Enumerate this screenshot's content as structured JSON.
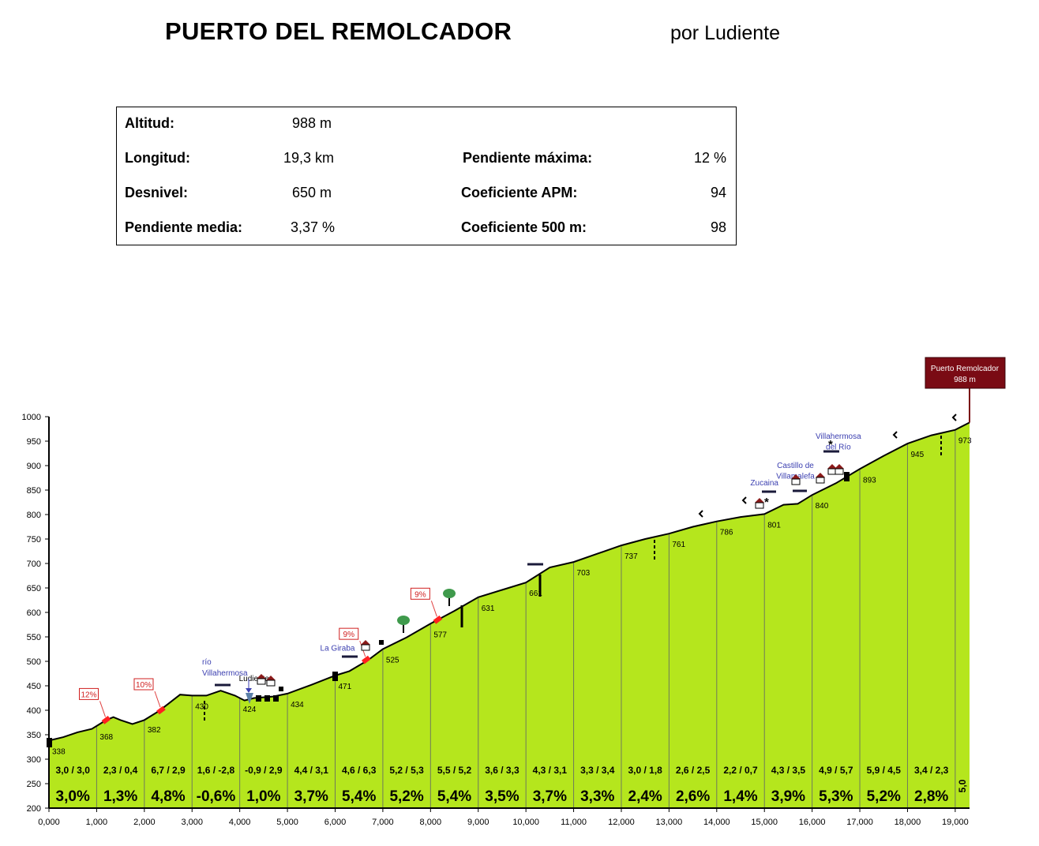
{
  "header": {
    "title": "PUERTO DEL REMOLCADOR",
    "author": "por Ludiente"
  },
  "stats": {
    "altitud_label": "Altitud:",
    "altitud_value": "988 m",
    "longitud_label": "Longitud:",
    "longitud_value": "19,3 km",
    "desnivel_label": "Desnivel:",
    "desnivel_value": "650 m",
    "pendiente_media_label": "Pendiente media:",
    "pendiente_media_value": "3,37 %",
    "pendiente_maxima_label": "Pendiente máxima:",
    "pendiente_maxima_value": "12 %",
    "coef_apm_label": "Coeficiente APM:",
    "coef_apm_value": "94",
    "coef_500_label": "Coeficiente 500 m:",
    "coef_500_value": "98"
  },
  "chart_data": {
    "type": "area",
    "fill_color": "#b5e61d",
    "summit": {
      "name": "Puerto Remolcador",
      "altitude": "988 m",
      "color": "#7a0b14"
    },
    "ylim": [
      200,
      1000
    ],
    "yticks": [
      200,
      250,
      300,
      350,
      400,
      450,
      500,
      550,
      600,
      650,
      700,
      750,
      800,
      850,
      900,
      950,
      1000
    ],
    "xlim": [
      0,
      19.3
    ],
    "xtick_labels": [
      "0,000",
      "1,000",
      "2,000",
      "3,000",
      "4,000",
      "5,000",
      "6,000",
      "7,000",
      "8,000",
      "9,000",
      "10,000",
      "11,000",
      "12,000",
      "13,000",
      "14,000",
      "15,000",
      "16,000",
      "17,000",
      "18,000",
      "19,000"
    ],
    "profile": [
      [
        0.0,
        338
      ],
      [
        0.3,
        345
      ],
      [
        0.6,
        355
      ],
      [
        0.9,
        362
      ],
      [
        1.2,
        380
      ],
      [
        1.35,
        386
      ],
      [
        1.5,
        380
      ],
      [
        1.75,
        372
      ],
      [
        2.0,
        380
      ],
      [
        2.3,
        398
      ],
      [
        2.5,
        413
      ],
      [
        2.75,
        432
      ],
      [
        3.0,
        430
      ],
      [
        3.3,
        430
      ],
      [
        3.6,
        440
      ],
      [
        3.9,
        430
      ],
      [
        4.1,
        420
      ],
      [
        4.3,
        425
      ],
      [
        4.7,
        428
      ],
      [
        5.0,
        434
      ],
      [
        5.5,
        452
      ],
      [
        6.0,
        471
      ],
      [
        6.3,
        480
      ],
      [
        6.7,
        503
      ],
      [
        7.0,
        525
      ],
      [
        7.5,
        549
      ],
      [
        8.0,
        577
      ],
      [
        8.5,
        603
      ],
      [
        9.0,
        631
      ],
      [
        9.5,
        646
      ],
      [
        10.0,
        661
      ],
      [
        10.5,
        692
      ],
      [
        11.0,
        703
      ],
      [
        11.5,
        720
      ],
      [
        12.0,
        737
      ],
      [
        12.5,
        750
      ],
      [
        13.0,
        761
      ],
      [
        13.5,
        775
      ],
      [
        14.0,
        786
      ],
      [
        14.5,
        795
      ],
      [
        15.0,
        801
      ],
      [
        15.4,
        820
      ],
      [
        15.7,
        822
      ],
      [
        16.0,
        840
      ],
      [
        16.5,
        864
      ],
      [
        17.0,
        893
      ],
      [
        17.5,
        920
      ],
      [
        18.0,
        945
      ],
      [
        18.5,
        962
      ],
      [
        19.0,
        973
      ],
      [
        19.3,
        988
      ]
    ],
    "point_labels": [
      {
        "x": 0.0,
        "y": 338,
        "label": "338"
      },
      {
        "x": 1.0,
        "y": 368,
        "label": "368"
      },
      {
        "x": 2.0,
        "y": 382,
        "label": "382"
      },
      {
        "x": 3.0,
        "y": 430,
        "label": "430"
      },
      {
        "x": 4.0,
        "y": 424,
        "label": "424"
      },
      {
        "x": 5.0,
        "y": 434,
        "label": "434"
      },
      {
        "x": 6.0,
        "y": 471,
        "label": "471"
      },
      {
        "x": 7.0,
        "y": 525,
        "label": "525"
      },
      {
        "x": 8.0,
        "y": 577,
        "label": "577"
      },
      {
        "x": 9.0,
        "y": 631,
        "label": "631"
      },
      {
        "x": 10.0,
        "y": 661,
        "label": "661"
      },
      {
        "x": 11.0,
        "y": 703,
        "label": "703"
      },
      {
        "x": 12.0,
        "y": 737,
        "label": "737"
      },
      {
        "x": 13.0,
        "y": 761,
        "label": "761"
      },
      {
        "x": 14.0,
        "y": 786,
        "label": "786"
      },
      {
        "x": 15.0,
        "y": 801,
        "label": "801"
      },
      {
        "x": 16.0,
        "y": 840,
        "label": "840"
      },
      {
        "x": 17.0,
        "y": 893,
        "label": "893"
      },
      {
        "x": 18.0,
        "y": 945,
        "label": "945"
      },
      {
        "x": 19.0,
        "y": 973,
        "label": "973"
      }
    ],
    "segments": [
      {
        "x0": 0,
        "x1": 1,
        "sub": "3,0 / 3,0",
        "avg": "3,0%"
      },
      {
        "x0": 1,
        "x1": 2,
        "sub": "2,3 / 0,4",
        "avg": "1,3%"
      },
      {
        "x0": 2,
        "x1": 3,
        "sub": "6,7 / 2,9",
        "avg": "4,8%"
      },
      {
        "x0": 3,
        "x1": 4,
        "sub": "1,6 / -2,8",
        "avg": "-0,6%"
      },
      {
        "x0": 4,
        "x1": 5,
        "sub": "-0,9 / 2,9",
        "avg": "1,0%"
      },
      {
        "x0": 5,
        "x1": 6,
        "sub": "4,4 / 3,1",
        "avg": "3,7%"
      },
      {
        "x0": 6,
        "x1": 7,
        "sub": "4,6 / 6,3",
        "avg": "5,4%"
      },
      {
        "x0": 7,
        "x1": 8,
        "sub": "5,2 / 5,3",
        "avg": "5,2%"
      },
      {
        "x0": 8,
        "x1": 9,
        "sub": "5,5 / 5,2",
        "avg": "5,4%"
      },
      {
        "x0": 9,
        "x1": 10,
        "sub": "3,6 / 3,3",
        "avg": "3,5%"
      },
      {
        "x0": 10,
        "x1": 11,
        "sub": "4,3 / 3,1",
        "avg": "3,7%"
      },
      {
        "x0": 11,
        "x1": 12,
        "sub": "3,3 / 3,4",
        "avg": "3,3%"
      },
      {
        "x0": 12,
        "x1": 13,
        "sub": "3,0 / 1,8",
        "avg": "2,4%"
      },
      {
        "x0": 13,
        "x1": 14,
        "sub": "2,6 / 2,5",
        "avg": "2,6%"
      },
      {
        "x0": 14,
        "x1": 15,
        "sub": "2,2 / 0,7",
        "avg": "1,4%"
      },
      {
        "x0": 15,
        "x1": 16,
        "sub": "4,3 / 3,5",
        "avg": "3,9%"
      },
      {
        "x0": 16,
        "x1": 17,
        "sub": "4,9 / 5,7",
        "avg": "5,3%"
      },
      {
        "x0": 17,
        "x1": 18,
        "sub": "5,9 / 4,5",
        "avg": "5,2%"
      },
      {
        "x0": 18,
        "x1": 19,
        "sub": "3,4 / 2,3",
        "avg": "2,8%"
      },
      {
        "x0": 19,
        "x1": 19.3,
        "sub": "",
        "avg": "5,0"
      }
    ],
    "steep_marks": [
      {
        "x": 1.2,
        "y": 380,
        "label": "12%"
      },
      {
        "x": 2.35,
        "y": 400,
        "label": "10%"
      },
      {
        "x": 6.65,
        "y": 503,
        "label": "9%"
      },
      {
        "x": 8.15,
        "y": 585,
        "label": "9%"
      }
    ],
    "place_labels": [
      {
        "x": 4.3,
        "y": 460,
        "text": "Ludiente",
        "color": "#000000"
      },
      {
        "x": 6.05,
        "y": 522,
        "text": "La Giraba",
        "color": "#3b3fb0"
      },
      {
        "x": 15.0,
        "y": 860,
        "text": "Zucaina",
        "color": "#3b3fb0"
      },
      {
        "x": 15.65,
        "y": 895,
        "text": "Castillo de",
        "color": "#3b3fb0"
      },
      {
        "x": 15.65,
        "y": 873,
        "text": "Villamalefa",
        "color": "#3b3fb0"
      },
      {
        "x": 16.55,
        "y": 955,
        "text": "Villahermosa",
        "color": "#3b3fb0"
      },
      {
        "x": 16.55,
        "y": 933,
        "text": "del Río",
        "color": "#3b3fb0"
      }
    ],
    "river_label": {
      "x": 3.25,
      "line1": "río",
      "line2": "Villahermosa",
      "color": "#3b3fb0"
    }
  }
}
